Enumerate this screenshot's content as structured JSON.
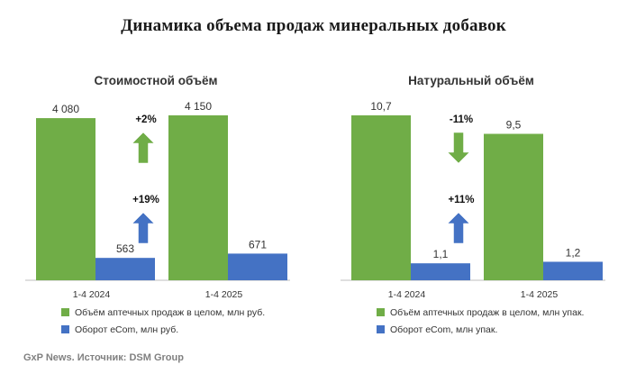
{
  "title": "Динамика объема продаж минеральных добавок",
  "colors": {
    "green": "#70ad47",
    "blue": "#4472c4",
    "axis": "#bfbfbf"
  },
  "chart_data": [
    {
      "type": "bar",
      "title": "Стоимостной объём",
      "categories": [
        "1-4 2024",
        "1-4 2025"
      ],
      "series": [
        {
          "name": "Объём аптечных продаж в целом, млн руб.",
          "values": [
            4080,
            4150
          ],
          "labels": [
            "4 080",
            "4 150"
          ],
          "color": "#70ad47"
        },
        {
          "name": "Оборот eCom, млн руб.",
          "values": [
            563,
            671
          ],
          "labels": [
            "563",
            "671"
          ],
          "color": "#4472c4"
        }
      ],
      "ylim": [
        0,
        4150
      ],
      "annotations": [
        {
          "text": "+2%",
          "arrow": "up",
          "color": "#70ad47",
          "series": 0
        },
        {
          "text": "+19%",
          "arrow": "up",
          "color": "#4472c4",
          "series": 1
        }
      ],
      "legend": "bottom",
      "grid": false
    },
    {
      "type": "bar",
      "title": "Натуральный объём",
      "categories": [
        "1-4 2024",
        "1-4 2025"
      ],
      "series": [
        {
          "name": "Объём аптечных продаж в целом, млн упак.",
          "values": [
            10.7,
            9.5
          ],
          "labels": [
            "10,7",
            "9,5"
          ],
          "color": "#70ad47"
        },
        {
          "name": "Оборот eCom, млн упак.",
          "values": [
            1.1,
            1.2
          ],
          "labels": [
            "1,1",
            "1,2"
          ],
          "color": "#4472c4"
        }
      ],
      "ylim": [
        0,
        10.7
      ],
      "annotations": [
        {
          "text": "-11%",
          "arrow": "down",
          "color": "#70ad47",
          "series": 0
        },
        {
          "text": "+11%",
          "arrow": "up",
          "color": "#4472c4",
          "series": 1
        }
      ],
      "legend": "bottom",
      "grid": false
    }
  ],
  "footer": "GxP News. Источник: DSM Group"
}
